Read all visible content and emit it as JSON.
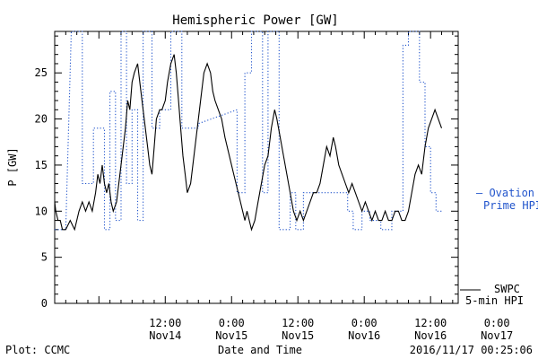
{
  "chart_data": {
    "type": "line",
    "title": "Hemispheric Power [GW]",
    "xlabel": "Date and Time",
    "ylabel": "P [GW]",
    "ylim": [
      0,
      29.5
    ],
    "yticks": [
      0,
      5,
      10,
      15,
      20,
      25
    ],
    "x_range_hours": [
      -10,
      26.5
    ],
    "xticks": [
      {
        "hour": 0,
        "time": "12:00",
        "date": "Nov14"
      },
      {
        "hour": 6,
        "time": "0:00",
        "date": "Nov15"
      },
      {
        "hour": 12,
        "time": "12:00",
        "date": "Nov15"
      },
      {
        "hour": 18,
        "time": "0:00",
        "date": "Nov16"
      },
      {
        "hour": 24,
        "time": "12:00",
        "date": "Nov16"
      },
      {
        "hour": 30,
        "time": "0:00",
        "date": "Nov17"
      }
    ],
    "series": [
      {
        "name": "SWPC 5-min HPI",
        "color": "#000000",
        "style": "solid",
        "points": [
          [
            -10,
            11
          ],
          [
            -9.9,
            10
          ],
          [
            -9.7,
            9
          ],
          [
            -9.5,
            9
          ],
          [
            -9.3,
            8
          ],
          [
            -9,
            8
          ],
          [
            -8.6,
            9
          ],
          [
            -8.2,
            8
          ],
          [
            -7.8,
            10
          ],
          [
            -7.5,
            11
          ],
          [
            -7.2,
            10
          ],
          [
            -6.9,
            11
          ],
          [
            -6.6,
            10
          ],
          [
            -6.3,
            12
          ],
          [
            -6.1,
            14
          ],
          [
            -5.9,
            13
          ],
          [
            -5.7,
            15
          ],
          [
            -5.5,
            13
          ],
          [
            -5.3,
            12
          ],
          [
            -5.1,
            13
          ],
          [
            -4.9,
            11
          ],
          [
            -4.7,
            10
          ],
          [
            -4.4,
            11
          ],
          [
            -4.2,
            13
          ],
          [
            -3.9,
            16
          ],
          [
            -3.6,
            19
          ],
          [
            -3.4,
            22
          ],
          [
            -3.2,
            21
          ],
          [
            -3.0,
            24
          ],
          [
            -2.8,
            25
          ],
          [
            -2.5,
            26
          ],
          [
            -2.3,
            24
          ],
          [
            -2.0,
            21
          ],
          [
            -1.8,
            19
          ],
          [
            -1.6,
            17
          ],
          [
            -1.4,
            15
          ],
          [
            -1.2,
            14
          ],
          [
            -1.0,
            17
          ],
          [
            -0.8,
            20
          ],
          [
            -0.5,
            21
          ],
          [
            -0.3,
            21
          ],
          [
            0.0,
            22
          ],
          [
            0.2,
            24
          ],
          [
            0.5,
            26
          ],
          [
            0.8,
            27
          ],
          [
            1.0,
            25
          ],
          [
            1.2,
            22
          ],
          [
            1.4,
            19
          ],
          [
            1.6,
            16
          ],
          [
            1.8,
            14
          ],
          [
            2.0,
            12
          ],
          [
            2.3,
            13
          ],
          [
            2.6,
            16
          ],
          [
            2.9,
            19
          ],
          [
            3.2,
            22
          ],
          [
            3.5,
            25
          ],
          [
            3.8,
            26
          ],
          [
            4.1,
            25
          ],
          [
            4.3,
            23
          ],
          [
            4.5,
            22
          ],
          [
            4.8,
            21
          ],
          [
            5.1,
            20
          ],
          [
            5.4,
            18
          ],
          [
            5.8,
            16
          ],
          [
            6.2,
            14
          ],
          [
            6.6,
            12
          ],
          [
            7.0,
            10
          ],
          [
            7.2,
            9
          ],
          [
            7.4,
            10
          ],
          [
            7.6,
            9
          ],
          [
            7.8,
            8
          ],
          [
            8.1,
            9
          ],
          [
            8.4,
            11
          ],
          [
            8.7,
            13
          ],
          [
            9.0,
            15
          ],
          [
            9.3,
            16
          ],
          [
            9.6,
            19
          ],
          [
            9.9,
            21
          ],
          [
            10.1,
            20
          ],
          [
            10.4,
            18
          ],
          [
            10.7,
            16
          ],
          [
            11.0,
            14
          ],
          [
            11.3,
            12
          ],
          [
            11.6,
            10
          ],
          [
            11.9,
            9
          ],
          [
            12.2,
            10
          ],
          [
            12.5,
            9
          ],
          [
            12.8,
            10
          ],
          [
            13.1,
            11
          ],
          [
            13.4,
            12
          ],
          [
            13.7,
            12
          ],
          [
            14.0,
            13
          ],
          [
            14.3,
            15
          ],
          [
            14.6,
            17
          ],
          [
            14.9,
            16
          ],
          [
            15.2,
            18
          ],
          [
            15.4,
            17
          ],
          [
            15.7,
            15
          ],
          [
            16.0,
            14
          ],
          [
            16.3,
            13
          ],
          [
            16.6,
            12
          ],
          [
            16.9,
            13
          ],
          [
            17.2,
            12
          ],
          [
            17.5,
            11
          ],
          [
            17.8,
            10
          ],
          [
            18.1,
            11
          ],
          [
            18.4,
            10
          ],
          [
            18.7,
            9
          ],
          [
            19.0,
            10
          ],
          [
            19.3,
            9
          ],
          [
            19.6,
            9
          ],
          [
            19.9,
            10
          ],
          [
            20.2,
            9
          ],
          [
            20.5,
            9
          ],
          [
            20.8,
            10
          ],
          [
            21.1,
            10
          ],
          [
            21.4,
            9
          ],
          [
            21.7,
            9
          ],
          [
            22.0,
            10
          ],
          [
            22.3,
            12
          ],
          [
            22.6,
            14
          ],
          [
            22.9,
            15
          ],
          [
            23.2,
            14
          ],
          [
            23.5,
            17
          ],
          [
            23.8,
            19
          ],
          [
            24.1,
            20
          ],
          [
            24.4,
            21
          ],
          [
            24.7,
            20
          ],
          [
            25.0,
            19
          ]
        ]
      },
      {
        "name": "Ovation Prime HPI",
        "color": "#2255cc",
        "style": "dotted",
        "points": [
          [
            -10,
            8
          ],
          [
            -9,
            8
          ],
          [
            -8.5,
            29.5
          ],
          [
            -7.5,
            29.5
          ],
          [
            -7.5,
            13
          ],
          [
            -6.5,
            13
          ],
          [
            -6.5,
            19
          ],
          [
            -5.5,
            19
          ],
          [
            -5.5,
            8
          ],
          [
            -5,
            8
          ],
          [
            -5,
            23
          ],
          [
            -4.5,
            23
          ],
          [
            -4.5,
            9
          ],
          [
            -4,
            9
          ],
          [
            -4,
            29.5
          ],
          [
            -3.5,
            29.5
          ],
          [
            -3.5,
            13
          ],
          [
            -3,
            13
          ],
          [
            -3,
            21
          ],
          [
            -2.5,
            21
          ],
          [
            -2.5,
            9
          ],
          [
            -2,
            9
          ],
          [
            -2,
            29.5
          ],
          [
            -1.2,
            29.5
          ],
          [
            -1.2,
            19
          ],
          [
            -0.5,
            19
          ],
          [
            -0.5,
            21
          ],
          [
            0.5,
            21
          ],
          [
            0.5,
            29.5
          ],
          [
            1.5,
            29.5
          ],
          [
            1.5,
            19
          ],
          [
            3,
            19
          ],
          [
            3,
            19.5
          ],
          [
            6.5,
            21
          ],
          [
            6.5,
            12
          ],
          [
            7.2,
            12
          ],
          [
            7.2,
            25
          ],
          [
            7.8,
            25
          ],
          [
            7.8,
            29.5
          ],
          [
            8.8,
            29.5
          ],
          [
            8.8,
            12
          ],
          [
            9.3,
            12
          ],
          [
            9.3,
            29.5
          ],
          [
            10.3,
            29.5
          ],
          [
            10.3,
            8
          ],
          [
            11.3,
            8
          ],
          [
            11.3,
            12
          ],
          [
            11.8,
            12
          ],
          [
            11.8,
            8
          ],
          [
            12.5,
            8
          ],
          [
            12.5,
            12
          ],
          [
            16.5,
            12
          ],
          [
            16.5,
            10
          ],
          [
            17,
            10
          ],
          [
            17,
            8
          ],
          [
            17.8,
            8
          ],
          [
            17.8,
            10
          ],
          [
            18.5,
            10
          ],
          [
            18.5,
            9
          ],
          [
            19.5,
            9
          ],
          [
            19.5,
            8
          ],
          [
            20.5,
            8
          ],
          [
            20.5,
            10
          ],
          [
            21.5,
            10
          ],
          [
            21.5,
            28
          ],
          [
            22,
            28
          ],
          [
            22,
            29.5
          ],
          [
            23,
            29.5
          ],
          [
            23,
            24
          ],
          [
            23.5,
            24
          ],
          [
            23.5,
            17
          ],
          [
            24,
            17
          ],
          [
            24,
            12
          ],
          [
            24.5,
            12
          ],
          [
            24.5,
            10
          ],
          [
            25,
            10
          ]
        ]
      }
    ],
    "legend": {
      "placement": "right",
      "swpc": [
        "SWPC",
        "5-min HPI"
      ],
      "ovation": [
        "— Ovation",
        "Prime HPI"
      ]
    }
  },
  "footer": {
    "plot_credit": "Plot: CCMC",
    "timestamp": "2016/11/17 00:25:06"
  }
}
